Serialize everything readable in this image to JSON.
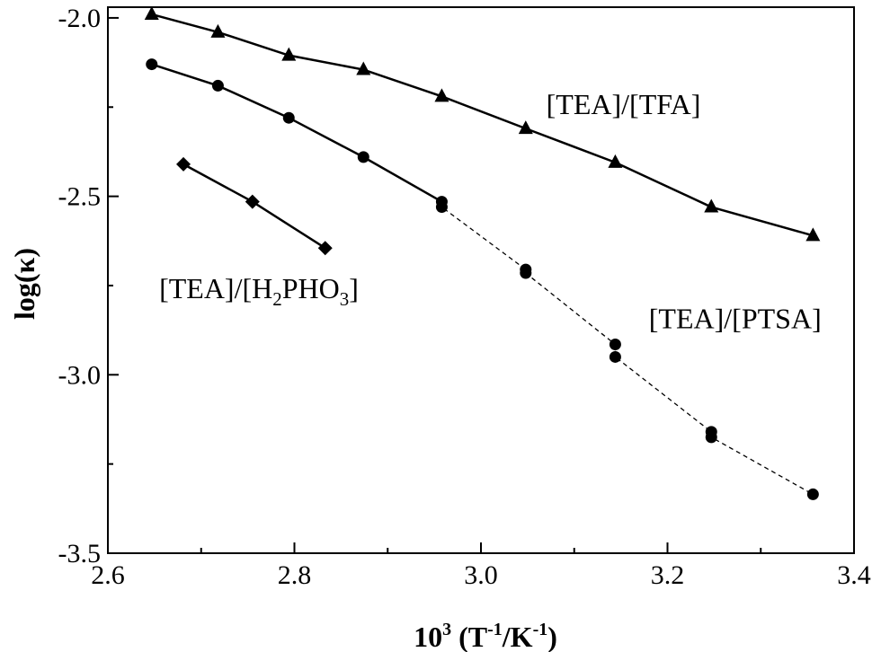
{
  "chart_data": {
    "type": "line",
    "title": "",
    "xlabel": {
      "base": "10",
      "base_sup": "3",
      "open": " (T",
      "sup1": "-1",
      "mid": "/K",
      "sup2": "-1",
      "close": ")"
    },
    "ylabel": "log(κ)",
    "xlim": [
      2.6,
      3.4
    ],
    "ylim": [
      -3.5,
      -1.97
    ],
    "xticks": [
      2.6,
      2.8,
      3.0,
      3.2,
      3.4
    ],
    "xtick_labels": [
      "2.6",
      "2.8",
      "3.0",
      "3.2",
      "3.4"
    ],
    "yticks": [
      -2.0,
      -2.5,
      -3.0,
      -3.5
    ],
    "ytick_labels": [
      "-2.0",
      "-2.5",
      "-3.0",
      "-3.5"
    ],
    "grid": false,
    "series": [
      {
        "label": {
          "parts": [
            "[TEA]/[TFA]"
          ]
        },
        "marker": "triangle",
        "line_style": "solid",
        "label_anchor": [
          3.07,
          -2.27
        ],
        "x": [
          2.647,
          2.718,
          2.794,
          2.874,
          2.958,
          3.048,
          3.144,
          3.247,
          3.356
        ],
        "y": [
          -1.99,
          -2.04,
          -2.105,
          -2.145,
          -2.22,
          -2.31,
          -2.405,
          -2.53,
          -2.61
        ]
      },
      {
        "label": {
          "parts": [
            "[TEA]/[PTSA]"
          ]
        },
        "marker": "circle",
        "line_style": "solid_then_dashed",
        "dash_from_index": 4,
        "label_anchor": [
          3.18,
          -2.87
        ],
        "x": [
          2.647,
          2.718,
          2.794,
          2.874,
          2.958,
          2.958,
          3.048,
          3.048,
          3.144,
          3.144,
          3.247,
          3.247,
          3.356
        ],
        "y": [
          -2.13,
          -2.19,
          -2.28,
          -2.39,
          -2.515,
          -2.53,
          -2.705,
          -2.715,
          -2.915,
          -2.95,
          -3.16,
          -3.175,
          -3.335
        ]
      },
      {
        "label": {
          "parts": [
            "[TEA]/[H",
            "2",
            "PHO",
            "3",
            "]"
          ]
        },
        "marker": "diamond",
        "line_style": "solid",
        "label_anchor": [
          2.655,
          -2.785
        ],
        "x": [
          2.681,
          2.755,
          2.833
        ],
        "y": [
          -2.41,
          -2.515,
          -2.645
        ]
      }
    ]
  }
}
